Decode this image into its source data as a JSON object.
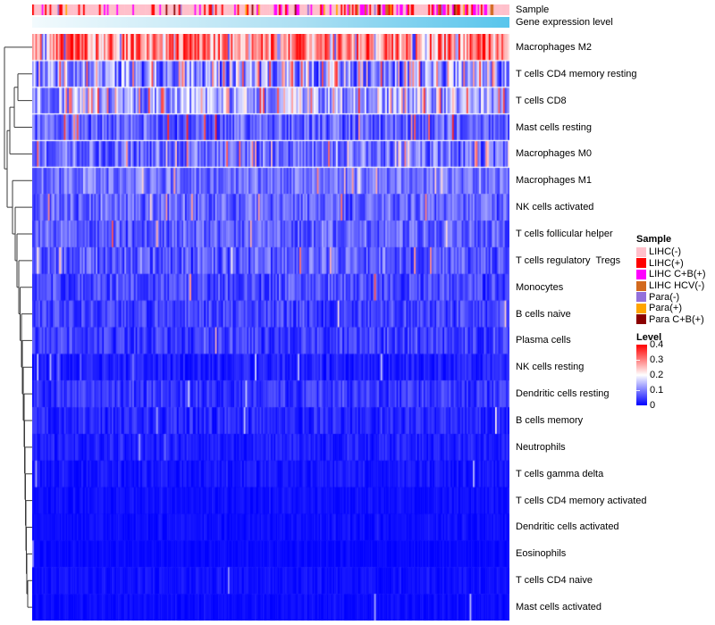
{
  "annotations": {
    "sample_label": "Sample",
    "gene_expression_label": "Gene expression level",
    "gene_expression_gradient": {
      "left": "#F2FAFD",
      "mid": "#AEE0F3",
      "right": "#58C5EC"
    }
  },
  "legend": {
    "sample_title": "Sample",
    "sample_items": [
      {
        "label": "LIHC(-)",
        "color": "#FFC0CB"
      },
      {
        "label": "LIHC(+)",
        "color": "#FF0000"
      },
      {
        "label": "LIHC C+B(+)",
        "color": "#FF00FF"
      },
      {
        "label": "LIHC HCV(-)",
        "color": "#D2691E"
      },
      {
        "label": "Para(-)",
        "color": "#9370DB"
      },
      {
        "label": "Para(+)",
        "color": "#FFA500"
      },
      {
        "label": "Para C+B(+)",
        "color": "#8B0000"
      }
    ],
    "level_title": "Level",
    "level_ticks": [
      "0.4",
      "0.3",
      "0.2",
      "0.1",
      "0"
    ],
    "level_colors": {
      "high": "#FF0000",
      "mid": "#FFFFFF",
      "low": "#0000FF"
    }
  },
  "chart_data": {
    "type": "heatmap",
    "title": "",
    "description": "Immune cell fraction heatmap (rows hierarchically clustered) across tumor/para samples ordered by gene expression level",
    "columns": 300,
    "value_range": [
      0,
      0.4
    ],
    "colormap_stops": [
      [
        0,
        "#0000FF"
      ],
      [
        0.2,
        "#FFFFFF"
      ],
      [
        0.4,
        "#FF0000"
      ]
    ],
    "rows": [
      {
        "label": "Macrophages M2",
        "mean_level": 0.3,
        "variation": 0.12,
        "spike_prob": 0.05,
        "spike_level": 0.08
      },
      {
        "label": "T cells CD4 memory resting",
        "mean_level": 0.11,
        "variation": 0.1,
        "spike_prob": 0.17,
        "spike_level": 0.3
      },
      {
        "label": "T cells CD8",
        "mean_level": 0.13,
        "variation": 0.09,
        "spike_prob": 0.11,
        "spike_level": 0.3
      },
      {
        "label": "Mast cells resting",
        "mean_level": 0.075,
        "variation": 0.06,
        "spike_prob": 0.06,
        "spike_level": 0.32
      },
      {
        "label": "Macrophages M0",
        "mean_level": 0.085,
        "variation": 0.07,
        "spike_prob": 0.07,
        "spike_level": 0.28
      },
      {
        "label": "Macrophages M1",
        "mean_level": 0.09,
        "variation": 0.05,
        "spike_prob": 0.03,
        "spike_level": 0.26
      },
      {
        "label": "NK cells activated",
        "mean_level": 0.075,
        "variation": 0.05,
        "spike_prob": 0.02,
        "spike_level": 0.26
      },
      {
        "label": "T cells follicular helper",
        "mean_level": 0.075,
        "variation": 0.05,
        "spike_prob": 0.025,
        "spike_level": 0.28
      },
      {
        "label": "T cells regulatory  Tregs",
        "mean_level": 0.07,
        "variation": 0.055,
        "spike_prob": 0.015,
        "spike_level": 0.26
      },
      {
        "label": "Monocytes",
        "mean_level": 0.055,
        "variation": 0.045,
        "spike_prob": 0.015,
        "spike_level": 0.28
      },
      {
        "label": "B cells naive",
        "mean_level": 0.05,
        "variation": 0.04,
        "spike_prob": 0.008,
        "spike_level": 0.24
      },
      {
        "label": "Plasma cells",
        "mean_level": 0.045,
        "variation": 0.04,
        "spike_prob": 0.01,
        "spike_level": 0.2
      },
      {
        "label": "NK cells resting",
        "mean_level": 0.022,
        "variation": 0.025,
        "spike_prob": 0.02,
        "spike_level": 0.12
      },
      {
        "label": "Dendritic cells resting",
        "mean_level": 0.04,
        "variation": 0.035,
        "spike_prob": 0.006,
        "spike_level": 0.18
      },
      {
        "label": "B cells memory",
        "mean_level": 0.03,
        "variation": 0.03,
        "spike_prob": 0.005,
        "spike_level": 0.16
      },
      {
        "label": "Neutrophils",
        "mean_level": 0.022,
        "variation": 0.022,
        "spike_prob": 0.006,
        "spike_level": 0.14
      },
      {
        "label": "T cells gamma delta",
        "mean_level": 0.016,
        "variation": 0.018,
        "spike_prob": 0.005,
        "spike_level": 0.13
      },
      {
        "label": "T cells CD4 memory activated",
        "mean_level": 0.01,
        "variation": 0.012,
        "spike_prob": 0.006,
        "spike_level": 0.12
      },
      {
        "label": "Dendritic cells activated",
        "mean_level": 0.009,
        "variation": 0.012,
        "spike_prob": 0.004,
        "spike_level": 0.1
      },
      {
        "label": "Eosinophils",
        "mean_level": 0.005,
        "variation": 0.008,
        "spike_prob": 0.004,
        "spike_level": 0.16
      },
      {
        "label": "T cells CD4 naive",
        "mean_level": 0.01,
        "variation": 0.014,
        "spike_prob": 0.01,
        "spike_level": 0.14
      },
      {
        "label": "Mast cells activated",
        "mean_level": 0.007,
        "variation": 0.01,
        "spike_prob": 0.008,
        "spike_level": 0.1
      }
    ],
    "sample_annotation_distribution": {
      "LIHC(-)": 0.55,
      "LIHC(+)": 0.2,
      "LIHC C+B(+)": 0.12,
      "LIHC HCV(-)": 0.04,
      "Para(-)": 0.03,
      "Para(+)": 0.04,
      "Para C+B(+)": 0.02
    }
  }
}
